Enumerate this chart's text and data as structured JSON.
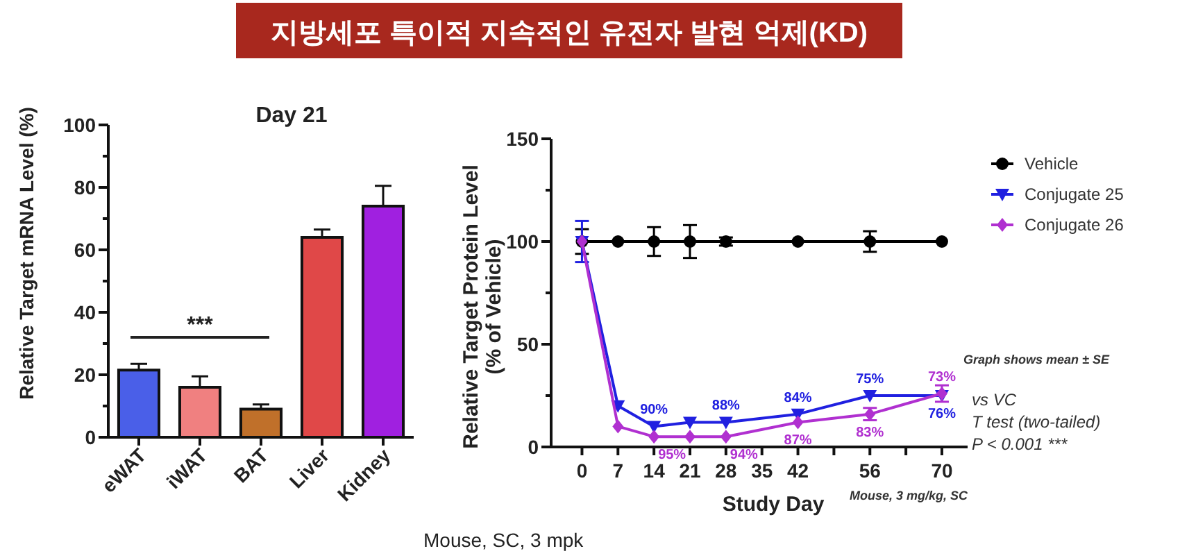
{
  "chart_data": [
    {
      "type": "other",
      "title": "지방세포 특이적 지속적인 유전자 발현 억제(KD)"
    },
    {
      "type": "bar",
      "title": "Day 21",
      "ylabel": "Relative Target mRNA Level (%)",
      "categories": [
        "eWAT",
        "iWAT",
        "BAT",
        "Liver",
        "Kidney"
      ],
      "values": [
        21.5,
        16,
        9,
        64,
        74
      ],
      "errors": [
        2,
        3.5,
        1.5,
        2.5,
        6.5
      ],
      "colors": [
        "#4a5fe8",
        "#f08080",
        "#c0702a",
        "#e04848",
        "#a020e0"
      ],
      "ylim": [
        0,
        100
      ],
      "yticks": [
        0,
        {
          "value": 10,
          "label": null
        },
        20,
        {
          "value": 30,
          "label": null
        },
        40,
        {
          "value": 50,
          "label": null
        },
        60,
        {
          "value": 70,
          "label": null
        },
        80,
        {
          "value": 90,
          "label": null
        },
        100
      ],
      "annotations": [
        "***",
        "Mouse, SC, 3 mpk"
      ],
      "grid": false
    },
    {
      "type": "line",
      "xlabel": "Study Day",
      "ylabel": "Relative Target Protein Level\n(% of Vehicle)",
      "x": [
        0,
        7,
        14,
        21,
        28,
        42,
        56,
        70
      ],
      "series": [
        {
          "name": "Vehicle",
          "color": "#000000",
          "marker": "circle",
          "values": [
            100,
            100,
            100,
            100,
            100,
            100,
            100,
            100
          ],
          "errors": [
            6,
            null,
            7,
            8,
            2,
            null,
            5,
            null
          ]
        },
        {
          "name": "Conjugate 25",
          "color": "#2020e0",
          "marker": "triangle",
          "values": [
            100,
            20,
            10,
            12,
            12,
            16,
            25,
            25
          ],
          "errors": [
            10,
            null,
            null,
            null,
            null,
            null,
            null,
            null
          ]
        },
        {
          "name": "Conjugate 26",
          "color": "#b030d0",
          "marker": "diamond",
          "values": [
            100,
            10,
            5,
            5,
            5,
            12,
            16,
            26
          ],
          "errors": [
            null,
            null,
            null,
            null,
            null,
            null,
            3,
            4
          ]
        }
      ],
      "xlim": [
        -6,
        75
      ],
      "xticks": [
        0,
        7,
        14,
        21,
        28,
        35,
        42,
        {
          "value": 49,
          "label": null
        },
        56,
        {
          "value": 63,
          "label": null
        },
        70
      ],
      "ylim": [
        0,
        150
      ],
      "yticks": [
        0,
        {
          "value": 25,
          "label": null
        },
        50,
        {
          "value": 75,
          "label": null
        },
        100,
        {
          "value": 125,
          "label": null
        },
        150
      ],
      "legend": "right",
      "grid": false,
      "annotations": [
        "Mouse, 3 mg/kg, SC",
        "Graph shows mean ± SE",
        "vs VC",
        "T test (two-tailed)",
        "P < 0.001 ***",
        {
          "text": "90%",
          "x": 14,
          "y": 10
        },
        {
          "text": "88%",
          "x": 28,
          "y": 12
        },
        {
          "text": "84%",
          "x": 42,
          "y": 16
        },
        {
          "text": "75%",
          "x": 56,
          "y": 25
        },
        {
          "text": "76%",
          "x": 70,
          "y": 25
        },
        {
          "text": "95%",
          "x": 14,
          "y": 5
        },
        {
          "text": "94%",
          "x": 28,
          "y": 5
        },
        {
          "text": "87%",
          "x": 42,
          "y": 12
        },
        {
          "text": "83%",
          "x": 56,
          "y": 16
        },
        {
          "text": "73%",
          "x": 70,
          "y": 26
        }
      ]
    }
  ]
}
